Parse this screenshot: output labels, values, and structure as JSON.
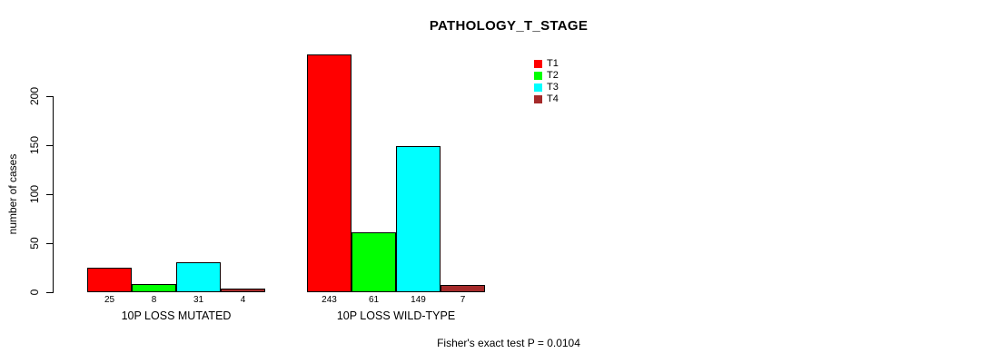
{
  "chart_data": {
    "type": "bar",
    "title": "PATHOLOGY_T_STAGE",
    "ylabel": "number of cases",
    "xlabel": "",
    "categories": [
      "10P LOSS MUTATED",
      "10P LOSS WILD-TYPE"
    ],
    "series": [
      {
        "name": "T1",
        "color": "#FF0000",
        "values": [
          25,
          243
        ]
      },
      {
        "name": "T2",
        "color": "#00FF00",
        "values": [
          8,
          61
        ]
      },
      {
        "name": "T3",
        "color": "#00FFFF",
        "values": [
          31,
          149
        ]
      },
      {
        "name": "T4",
        "color": "#A52A2A",
        "values": [
          4,
          7
        ]
      }
    ],
    "yticks": [
      0,
      50,
      100,
      150,
      200
    ],
    "ylim": [
      0,
      200
    ],
    "bar_value_labels": true,
    "legend_position": "top-right",
    "grid": false,
    "annotation": "Fisher's exact test P = 0.0104"
  }
}
